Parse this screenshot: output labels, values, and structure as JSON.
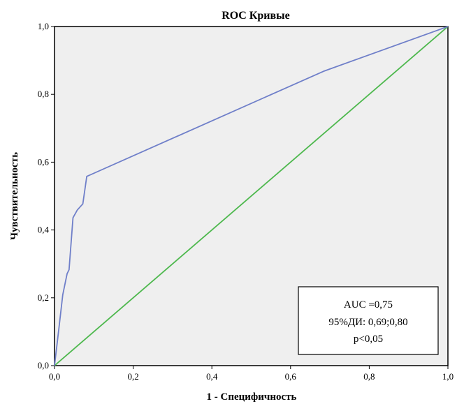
{
  "chart_data": {
    "type": "line",
    "title": "ROC Кривые",
    "xlabel": "1 - Специфичность",
    "ylabel": "Чувствительность",
    "xlim": [
      0,
      1
    ],
    "ylim": [
      0,
      1
    ],
    "xticks": [
      "0,0",
      "0,2",
      "0,4",
      "0,6",
      "0,8",
      "1,0"
    ],
    "yticks": [
      "0,0",
      "0,2",
      "0,4",
      "0,6",
      "0,8",
      "1,0"
    ],
    "grid": false,
    "series": [
      {
        "color": "#6f7fc9",
        "x": [
          0.0,
          0.011,
          0.021,
          0.032,
          0.037,
          0.047,
          0.058,
          0.072,
          0.082,
          0.684,
          1.0
        ],
        "y": [
          0.0,
          0.108,
          0.209,
          0.271,
          0.283,
          0.436,
          0.459,
          0.477,
          0.558,
          0.868,
          1.0
        ]
      },
      {
        "color": "#4db84d",
        "x": [
          0.0,
          1.0
        ],
        "y": [
          0.0,
          1.0
        ]
      }
    ],
    "annotation": [
      "AUC =0,75",
      "95%ДИ: 0,69;0,80",
      "p<0,05"
    ]
  },
  "colors": {
    "plot_background": "#efefef",
    "roc_curve": "#6f7fc9",
    "reference_line": "#4db84d"
  }
}
